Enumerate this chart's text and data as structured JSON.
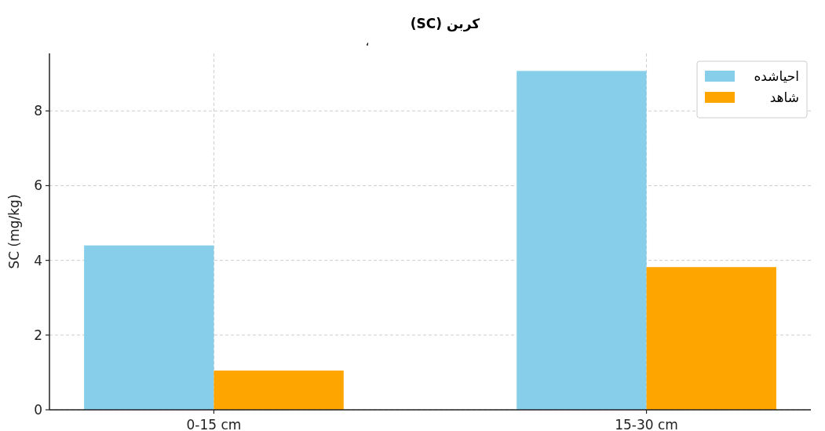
{
  "chart_data": {
    "type": "bar",
    "title": "کربن (SC)",
    "subtitle": "،",
    "ylabel": "SC (mg/kg)",
    "categories": [
      "0-15 cm",
      "15-30 cm"
    ],
    "series": [
      {
        "name": "احیاشده",
        "color": "#87ceeb",
        "values": [
          4.4,
          9.07
        ]
      },
      {
        "name": "شاهد",
        "color": "#ffa500",
        "values": [
          1.05,
          3.82
        ]
      }
    ],
    "ylim": [
      0,
      9.54
    ],
    "yticks": [
      0,
      2,
      4,
      6,
      8
    ],
    "grid": true,
    "legend": "top right"
  }
}
